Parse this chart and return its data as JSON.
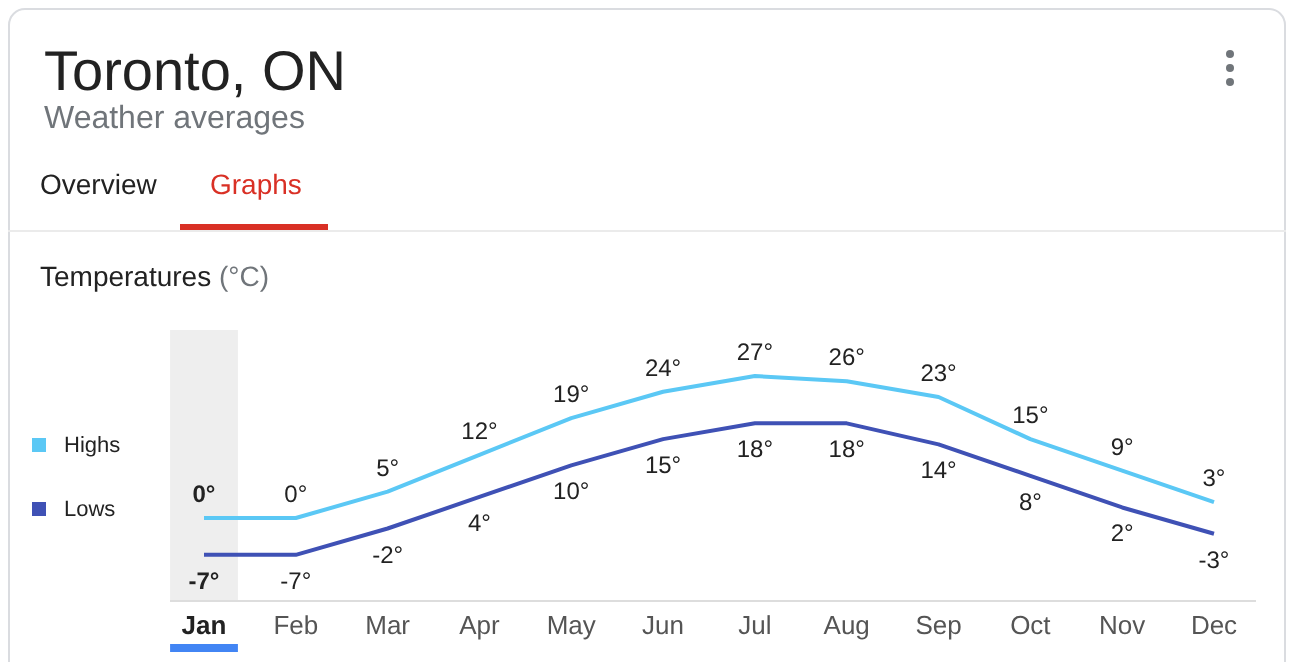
{
  "chart_data": {
    "type": "line",
    "title": "Toronto, ON",
    "subtitle": "Weather averages",
    "ylabel": "Temperatures (°C)",
    "annotations": [
      "Overview",
      "Graphs"
    ],
    "categories": [
      "Jan",
      "Feb",
      "Mar",
      "Apr",
      "May",
      "Jun",
      "Jul",
      "Aug",
      "Sep",
      "Oct",
      "Nov",
      "Dec"
    ],
    "series": [
      {
        "name": "Highs",
        "color": "#5bc8f5",
        "values": [
          0,
          0,
          5,
          12,
          19,
          24,
          27,
          26,
          23,
          15,
          9,
          3
        ],
        "value_labels": [
          "0°",
          "0°",
          "5°",
          "12°",
          "19°",
          "24°",
          "27°",
          "26°",
          "23°",
          "15°",
          "9°",
          "3°"
        ]
      },
      {
        "name": "Lows",
        "color": "#3f51b5",
        "values": [
          -7,
          -7,
          -2,
          4,
          10,
          15,
          18,
          18,
          14,
          8,
          2,
          -3
        ],
        "value_labels": [
          "-7°",
          "-7°",
          "-2°",
          "4°",
          "10°",
          "15°",
          "18°",
          "18°",
          "14°",
          "8°",
          "2°",
          "-3°"
        ]
      }
    ],
    "bands": [
      {
        "axis": "x",
        "from": "Jan",
        "to": "Jan",
        "color": "#eeeeee"
      }
    ],
    "legend": "left",
    "marker": "none",
    "grid": false
  }
}
